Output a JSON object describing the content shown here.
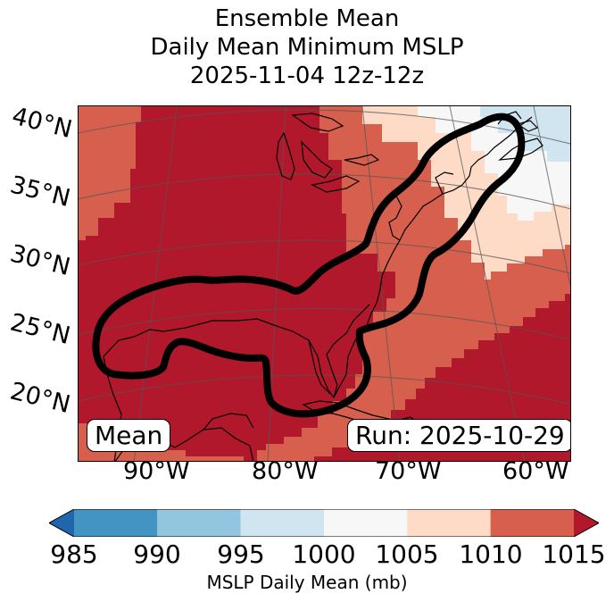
{
  "title": {
    "line1": "Ensemble Mean",
    "line2": "Daily Mean Minimum MSLP",
    "line3": "2025-11-04 12z-12z"
  },
  "map": {
    "lat_labels": [
      "40°N",
      "35°N",
      "30°N",
      "25°N",
      "20°N"
    ],
    "lon_labels": [
      "90°W",
      "80°W",
      "70°W",
      "60°W"
    ],
    "mean_label": "Mean",
    "run_label": "Run: 2025-10-29",
    "contour_color": "#000000",
    "coast_color": "#000000"
  },
  "colorbar": {
    "label": "MSLP Daily Mean (mb)",
    "ticks": [
      "985",
      "990",
      "995",
      "1000",
      "1005",
      "1010",
      "1015"
    ],
    "bins": [
      {
        "range": "<985",
        "color": "#2166ac"
      },
      {
        "range": "985-990",
        "color": "#4393c3"
      },
      {
        "range": "990-995",
        "color": "#92c5de"
      },
      {
        "range": "995-1000",
        "color": "#d1e5f0"
      },
      {
        "range": "1000-1005",
        "color": "#f7f7f7"
      },
      {
        "range": "1005-1010",
        "color": "#fddbc7"
      },
      {
        "range": "1010-1015",
        "color": "#d6604d"
      },
      {
        "range": ">1015",
        "color": "#b2182b"
      }
    ]
  }
}
